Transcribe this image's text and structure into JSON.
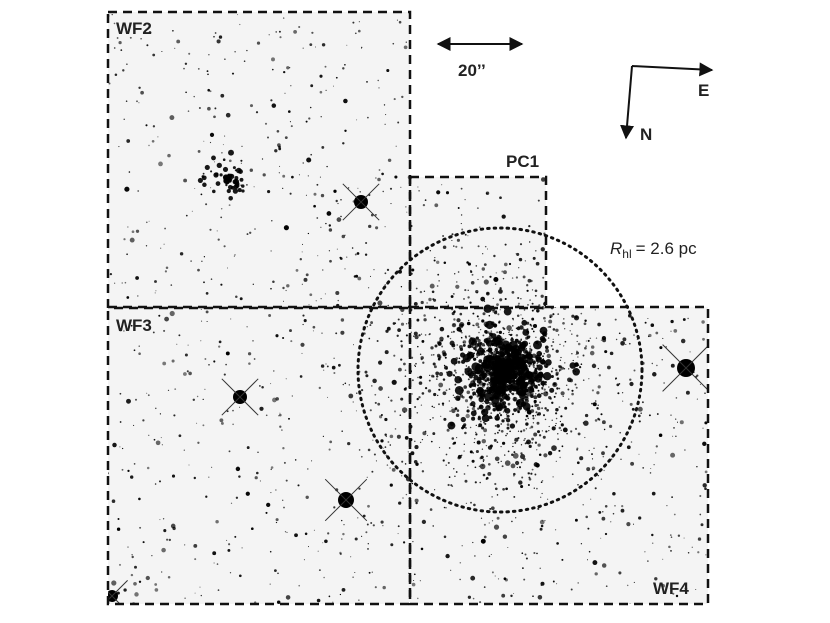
{
  "panels": {
    "wf2": "WF2",
    "pc1": "PC1",
    "wf3": "WF3",
    "wf4": "WF4"
  },
  "scale_bar": "20’’",
  "compass": {
    "east": "E",
    "north": "N"
  },
  "radius_label": {
    "symbol": "R",
    "subscript": "hl",
    "text": "= 2.6 pc"
  }
}
